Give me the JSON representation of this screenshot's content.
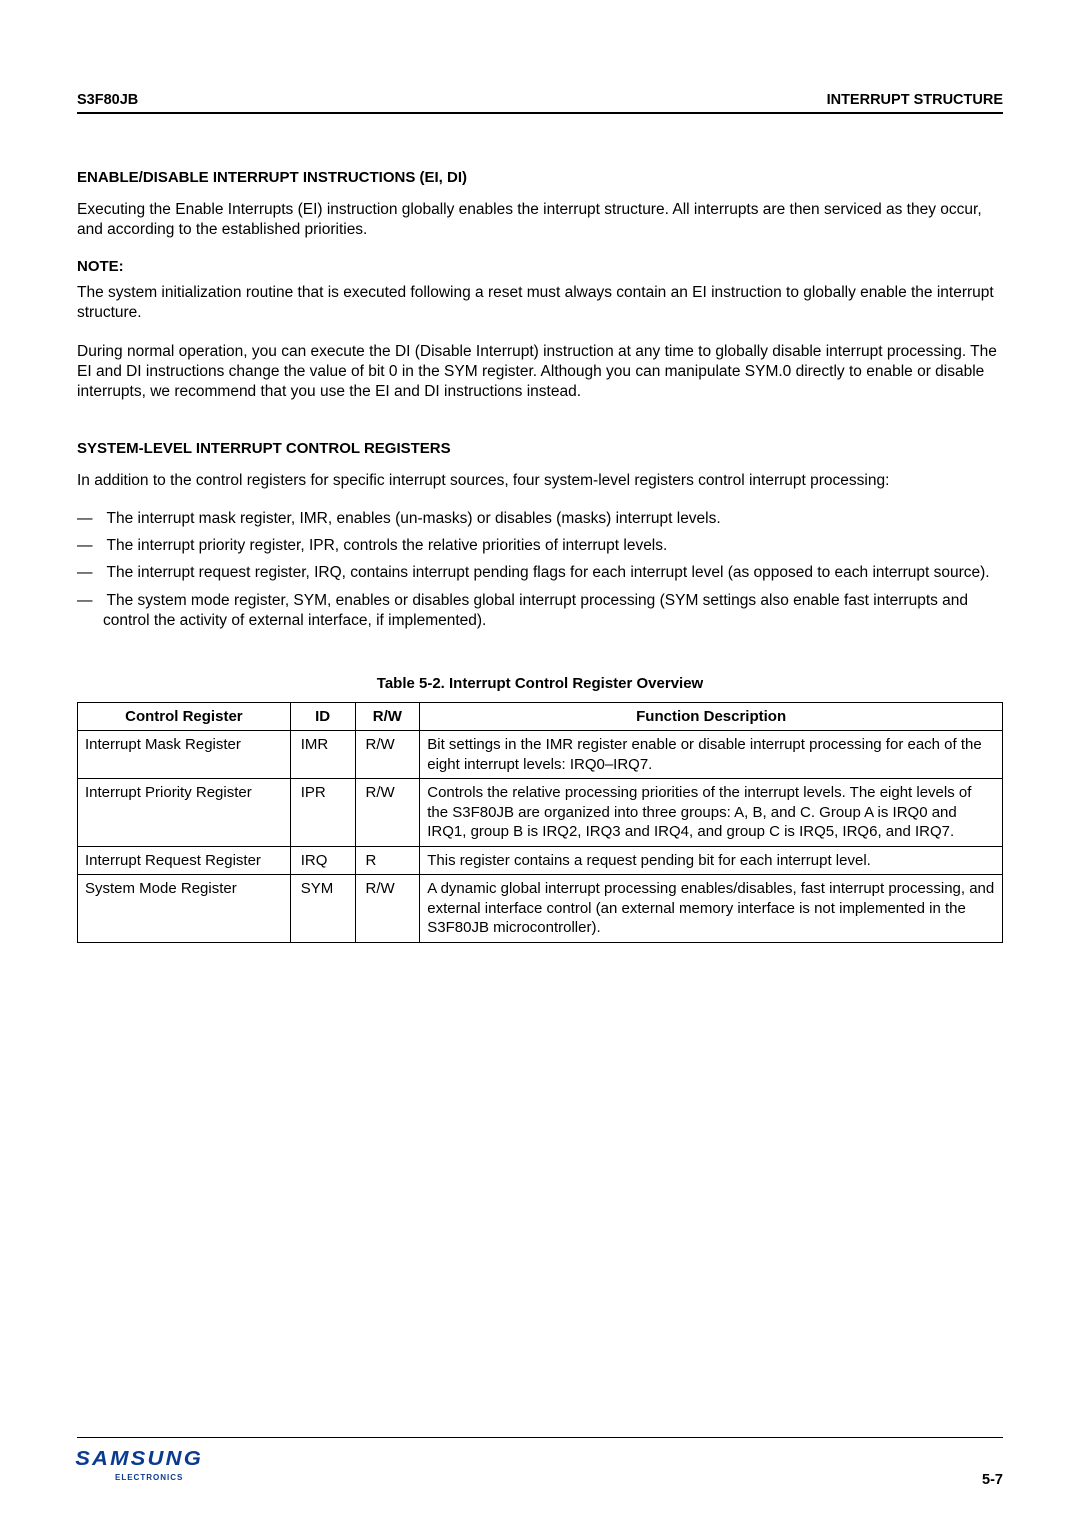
{
  "header": {
    "left": "S3F80JB",
    "right": "INTERRUPT STRUCTURE"
  },
  "section1": {
    "heading": "ENABLE/DISABLE INTERRUPT INSTRUCTIONS (EI, DI)",
    "para1": "Executing the Enable Interrupts (EI) instruction globally enables the interrupt structure. All interrupts are then serviced as they occur, and according to the established priorities."
  },
  "note": {
    "heading": "NOTE:",
    "para1": "The system initialization routine that is executed following a reset must always contain an EI instruction to globally enable the interrupt structure.",
    "para2": "During normal operation, you can execute the DI (Disable Interrupt) instruction at any time to globally disable interrupt processing. The EI and DI instructions change the value of bit 0 in the SYM register. Although you can manipulate SYM.0 directly to enable or disable interrupts, we recommend that you use the EI and DI instructions instead."
  },
  "section2": {
    "heading": "SYSTEM-LEVEL INTERRUPT CONTROL REGISTERS",
    "intro": "In addition to the control registers for specific interrupt sources, four system-level registers control interrupt processing:",
    "bullets": [
      "The interrupt mask register, IMR, enables (un-masks) or disables (masks) interrupt levels.",
      "The interrupt priority register, IPR, controls the relative priorities of interrupt levels.",
      "The interrupt request register, IRQ, contains interrupt pending flags for each interrupt level (as opposed to each interrupt source).",
      "The system mode register, SYM, enables or disables global interrupt processing (SYM settings also enable fast interrupts and control the activity of external interface, if implemented)."
    ]
  },
  "table": {
    "title": "Table 5-2. Interrupt Control Register Overview",
    "headers": {
      "reg": "Control Register",
      "id": "ID",
      "rw": "R/W",
      "desc": "Function Description"
    },
    "rows": [
      {
        "reg": "Interrupt Mask Register",
        "id": "IMR",
        "rw": "R/W",
        "desc": "Bit settings in the IMR register enable or disable interrupt processing for each of the eight interrupt levels: IRQ0–IRQ7."
      },
      {
        "reg": "Interrupt Priority Register",
        "id": "IPR",
        "rw": "R/W",
        "desc": "Controls the relative processing priorities of the interrupt levels. The eight levels of the S3F80JB are organized into three groups: A, B, and C. Group A is IRQ0 and IRQ1, group B is IRQ2, IRQ3 and IRQ4, and group C is IRQ5, IRQ6, and IRQ7."
      },
      {
        "reg": "Interrupt Request Register",
        "id": "IRQ",
        "rw": "R",
        "desc": "This register contains a request pending bit for each interrupt level."
      },
      {
        "reg": "System Mode Register",
        "id": "SYM",
        "rw": "R/W",
        "desc": "A dynamic global interrupt processing enables/disables, fast interrupt processing, and external interface control (an external memory interface is not implemented in the S3F80JB microcontroller)."
      }
    ]
  },
  "footer": {
    "logo_main": "SAMSUNG",
    "logo_sub": "ELECTRONICS",
    "page": "5-7",
    "logo_color": "#0a3b8f"
  }
}
